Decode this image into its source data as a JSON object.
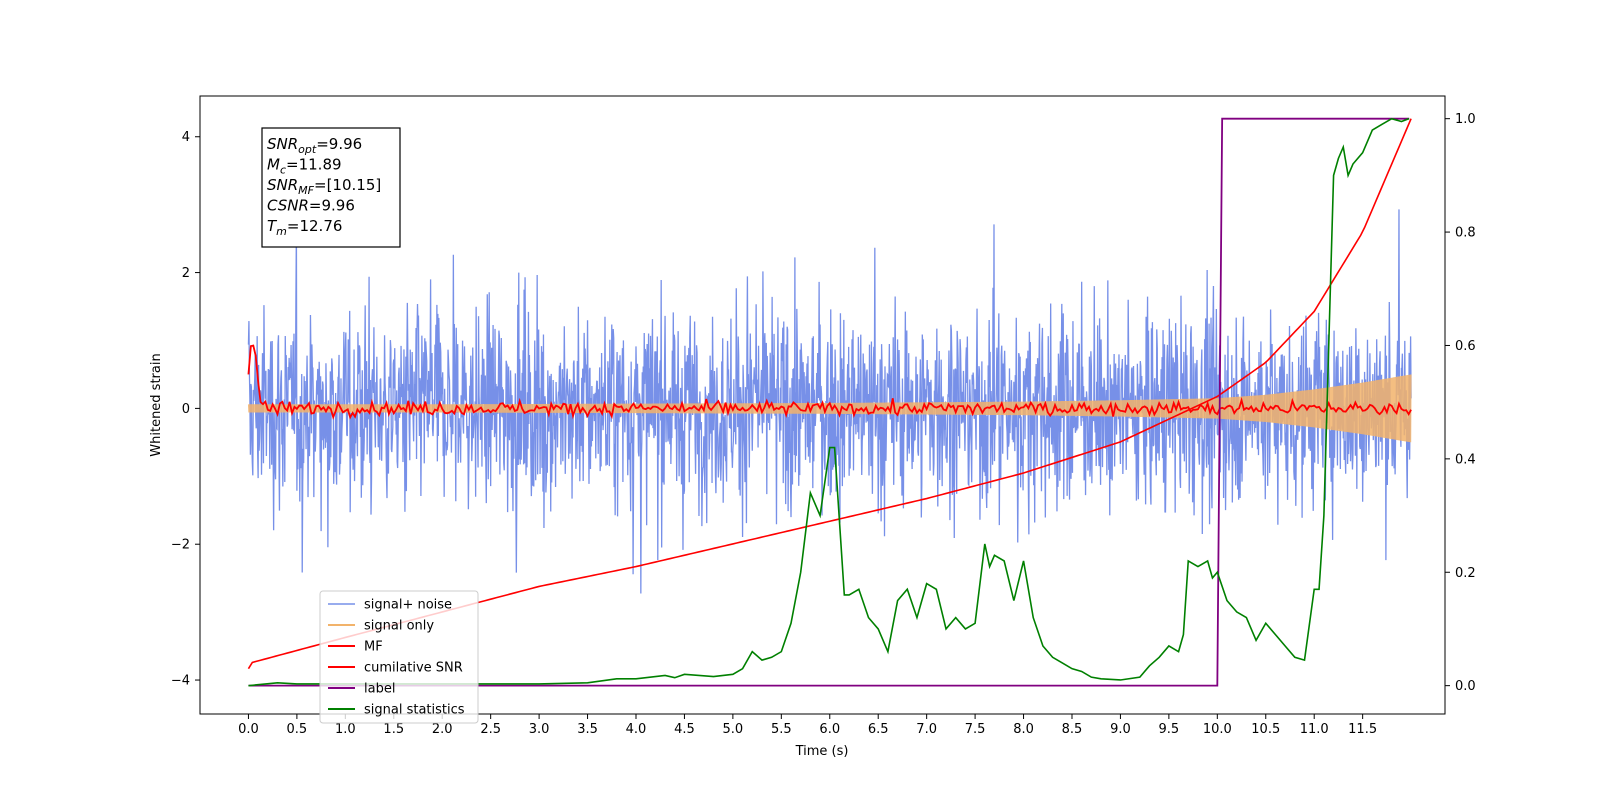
{
  "chart_data": {
    "type": "line",
    "xlabel": "Time (s)",
    "ylabel": "Whitened strain",
    "xlim": [
      -0.5,
      12.35
    ],
    "ylim": [
      -4.5,
      4.6
    ],
    "y2lim": [
      -0.05,
      1.04
    ],
    "x_ticks": [
      0.0,
      0.5,
      1.0,
      1.5,
      2.0,
      2.5,
      3.0,
      3.5,
      4.0,
      4.5,
      5.0,
      5.5,
      6.0,
      6.5,
      7.0,
      7.5,
      8.0,
      8.5,
      9.0,
      9.5,
      10.0,
      10.5,
      11.0,
      11.5
    ],
    "x_tick_labels": [
      "0.0",
      "0.5",
      "1.0",
      "1.5",
      "2.0",
      "2.5",
      "3.0",
      "3.5",
      "4.0",
      "4.5",
      "5.0",
      "5.5",
      "6.0",
      "6.5",
      "7.0",
      "7.5",
      "8.0",
      "8.5",
      "9.0",
      "9.5",
      "10.0",
      "10.5",
      "11.0",
      "11.5"
    ],
    "y_ticks": [
      -4,
      -2,
      0,
      2,
      4
    ],
    "y_tick_labels": [
      "−4",
      "−2",
      "0",
      "2",
      "4"
    ],
    "y2_ticks": [
      0.0,
      0.2,
      0.4,
      0.6,
      0.8,
      1.0
    ],
    "y2_tick_labels": [
      "0.0",
      "0.2",
      "0.4",
      "0.6",
      "0.8",
      "1.0"
    ],
    "grid": false,
    "legend_position": "lower-left",
    "annotation_box": [
      {
        "base": "SNR",
        "sub": "opt",
        "value": "=9.96"
      },
      {
        "base": "M",
        "sub": "c",
        "value": "=11.89"
      },
      {
        "base": "SNR",
        "sub": "MF",
        "value": "=[10.15]"
      },
      {
        "base": "CSNR",
        "sub": "",
        "value": "=9.96"
      },
      {
        "base": "T",
        "sub": "m",
        "value": "=12.76"
      }
    ],
    "series": [
      {
        "name": "signal+ noise",
        "color": "#7790e8",
        "axis": "left",
        "kind": "noise",
        "sigma": 0.95,
        "t_start": 0.0,
        "t_end": 12.0
      },
      {
        "name": "signal only",
        "color": "#f2b36b",
        "axis": "left",
        "kind": "chirp_envelope",
        "x": [
          0.0,
          2.0,
          4.0,
          6.0,
          8.0,
          9.0,
          10.0,
          10.5,
          11.0,
          11.5,
          12.0
        ],
        "amplitude": [
          0.06,
          0.06,
          0.07,
          0.08,
          0.1,
          0.12,
          0.15,
          0.2,
          0.28,
          0.38,
          0.5
        ]
      },
      {
        "name": "MF",
        "color": "#ff0000",
        "axis": "left",
        "x": [
          0.0,
          0.03,
          0.07,
          0.12,
          0.2,
          12.0
        ],
        "y": [
          0.5,
          1.0,
          0.85,
          0.1,
          0.0,
          0.0
        ],
        "jitter": 0.07
      },
      {
        "name": "cumilative SNR",
        "color": "#ff0000",
        "axis": "right",
        "x": [
          0.0,
          0.02,
          1.0,
          2.0,
          3.0,
          4.0,
          5.0,
          6.0,
          7.0,
          8.0,
          9.0,
          9.5,
          10.0,
          10.5,
          11.0,
          11.5,
          12.0
        ],
        "y": [
          0.03,
          0.04,
          0.085,
          0.13,
          0.175,
          0.21,
          0.25,
          0.29,
          0.33,
          0.375,
          0.43,
          0.47,
          0.51,
          0.57,
          0.66,
          0.8,
          1.0
        ]
      },
      {
        "name": "label",
        "color": "#800080",
        "axis": "right",
        "x": [
          0.0,
          10.0,
          10.05,
          11.98
        ],
        "y": [
          0.0,
          0.0,
          1.0,
          1.0
        ]
      },
      {
        "name": "signal statistics",
        "color": "#008000",
        "axis": "right",
        "x": [
          0.0,
          0.3,
          0.5,
          1.0,
          1.5,
          2.0,
          2.5,
          3.0,
          3.5,
          3.8,
          4.0,
          4.3,
          4.4,
          4.5,
          4.8,
          5.0,
          5.1,
          5.2,
          5.3,
          5.4,
          5.5,
          5.6,
          5.7,
          5.8,
          5.9,
          6.0,
          6.05,
          6.15,
          6.2,
          6.3,
          6.4,
          6.5,
          6.6,
          6.7,
          6.8,
          6.9,
          7.0,
          7.1,
          7.2,
          7.3,
          7.4,
          7.5,
          7.6,
          7.65,
          7.7,
          7.8,
          7.9,
          8.0,
          8.1,
          8.2,
          8.3,
          8.4,
          8.5,
          8.6,
          8.7,
          8.8,
          9.0,
          9.2,
          9.3,
          9.4,
          9.5,
          9.6,
          9.65,
          9.7,
          9.8,
          9.9,
          9.95,
          10.0,
          10.1,
          10.2,
          10.3,
          10.4,
          10.5,
          10.6,
          10.7,
          10.8,
          10.9,
          11.0,
          11.05,
          11.1,
          11.15,
          11.2,
          11.25,
          11.3,
          11.35,
          11.4,
          11.5,
          11.6,
          11.7,
          11.8,
          11.9,
          11.98
        ],
        "y": [
          0.0,
          0.005,
          0.003,
          0.003,
          0.003,
          0.003,
          0.003,
          0.003,
          0.005,
          0.012,
          0.012,
          0.018,
          0.014,
          0.02,
          0.016,
          0.02,
          0.03,
          0.06,
          0.045,
          0.05,
          0.06,
          0.11,
          0.2,
          0.34,
          0.3,
          0.42,
          0.42,
          0.16,
          0.16,
          0.17,
          0.12,
          0.1,
          0.06,
          0.15,
          0.17,
          0.12,
          0.18,
          0.17,
          0.1,
          0.12,
          0.1,
          0.11,
          0.25,
          0.21,
          0.23,
          0.22,
          0.15,
          0.22,
          0.12,
          0.07,
          0.05,
          0.04,
          0.03,
          0.025,
          0.015,
          0.012,
          0.01,
          0.015,
          0.035,
          0.05,
          0.07,
          0.06,
          0.09,
          0.22,
          0.21,
          0.22,
          0.19,
          0.2,
          0.15,
          0.13,
          0.12,
          0.08,
          0.11,
          0.09,
          0.07,
          0.05,
          0.045,
          0.17,
          0.17,
          0.3,
          0.6,
          0.9,
          0.93,
          0.95,
          0.9,
          0.92,
          0.94,
          0.98,
          0.99,
          1.0,
          0.995,
          1.0
        ]
      }
    ]
  }
}
